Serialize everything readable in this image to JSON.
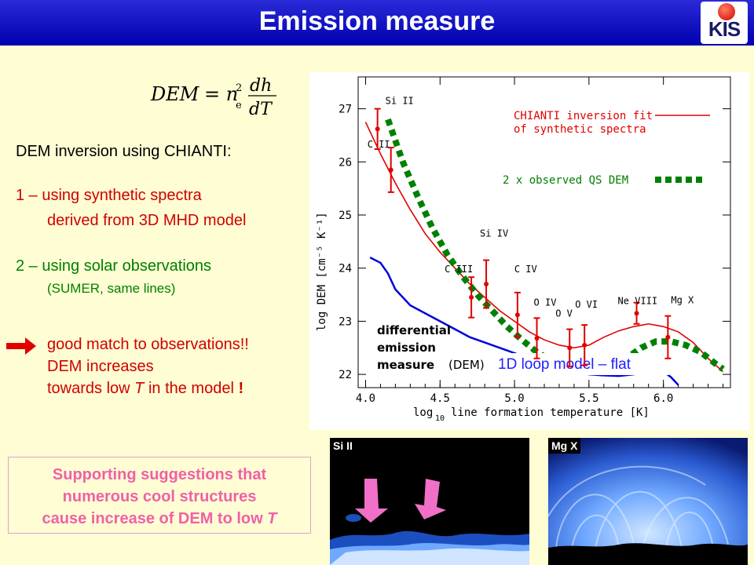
{
  "header": {
    "title": "Emission measure",
    "logo_text": "KIS"
  },
  "formula": {
    "lhs": "DEM",
    "eq": "= n",
    "sup": "2",
    "sub": "e",
    "num": "dh",
    "den": "dT"
  },
  "left": {
    "intro": "DEM inversion using CHIANTI:",
    "item1_line1": "1 – using synthetic spectra",
    "item1_line2": "derived from 3D MHD model",
    "item2_line1": "2 – using solar observations",
    "item2_line2": "(SUMER, same lines)",
    "conclusion_line1": "good match to observations!!",
    "conclusion_line2": "DEM increases",
    "conclusion_line3a": "towards low",
    "conclusion_line3b": "T",
    "conclusion_line3c": "in the model",
    "conclusion_line3d": "!"
  },
  "suggestion": {
    "line1": "Supporting suggestions that",
    "line2": "numerous cool structures",
    "line3a": "cause increase of DEM to low",
    "line3b": "T"
  },
  "images": {
    "left_label": "Si II",
    "right_label": "Mg X"
  },
  "chart_data": {
    "type": "line",
    "xlabel": "log10 line formation temperature [K]",
    "xlabel_main": "log",
    "xlabel_sub": "10",
    "xlabel_rest": "line formation temperature [K]",
    "ylabel": "log DEM [cm⁻⁵ K⁻¹]",
    "xlim": [
      3.95,
      6.45
    ],
    "ylim": [
      21.75,
      27.6
    ],
    "x_ticks": [
      "4.0",
      "4.5",
      "5.0",
      "5.5",
      "6.0"
    ],
    "x_tick_values": [
      4.0,
      4.5,
      5.0,
      5.5,
      6.0
    ],
    "y_ticks": [
      "22",
      "23",
      "24",
      "25",
      "26",
      "27"
    ],
    "y_tick_values": [
      22,
      23,
      24,
      25,
      26,
      27
    ],
    "legend": {
      "chianti": "CHIANTI inversion fit",
      "chianti2": "of synthetic spectra",
      "observed": "2 x observed QS DEM"
    },
    "annotations": {
      "dem1": "differential",
      "dem2": "emission",
      "dem3": "measure",
      "dem4": "(DEM)",
      "loop": "1D loop model – flat"
    },
    "series": [
      {
        "name": "CHIANTI inversion fit of synthetic spectra",
        "color": "#e00000",
        "x": [
          4.0,
          4.1,
          4.2,
          4.3,
          4.4,
          4.5,
          4.6,
          4.7,
          4.8,
          4.9,
          5.0,
          5.1,
          5.2,
          5.3,
          5.4,
          5.5,
          5.6,
          5.7,
          5.8,
          5.9,
          6.0,
          6.1,
          6.2,
          6.3,
          6.4
        ],
        "values": [
          26.75,
          26.15,
          25.6,
          25.1,
          24.65,
          24.3,
          24.0,
          23.7,
          23.45,
          23.2,
          23.0,
          22.8,
          22.65,
          22.55,
          22.5,
          22.55,
          22.7,
          22.82,
          22.9,
          22.95,
          22.9,
          22.8,
          22.6,
          22.3,
          22.05
        ]
      },
      {
        "name": "2 x observed QS DEM",
        "color": "#008000",
        "x": [
          4.15,
          4.25,
          4.35,
          4.45,
          4.55,
          4.65,
          4.75,
          4.85,
          4.95,
          5.05,
          5.15,
          5.25,
          5.35,
          5.45,
          5.55,
          5.65,
          5.75,
          5.85,
          5.95,
          6.05,
          6.15,
          6.25,
          6.35,
          6.4
        ],
        "values": [
          26.8,
          26.0,
          25.35,
          24.75,
          24.25,
          23.85,
          23.5,
          23.2,
          22.9,
          22.65,
          22.42,
          22.25,
          22.12,
          22.05,
          22.05,
          22.15,
          22.3,
          22.5,
          22.62,
          22.62,
          22.55,
          22.42,
          22.2,
          22.1
        ]
      },
      {
        "name": "differential emission measure (DEM)",
        "color": "#0000e0",
        "x": [
          4.03,
          4.1,
          4.15,
          4.2,
          4.3,
          4.4,
          4.5,
          4.6,
          4.7,
          4.8,
          4.9,
          5.0,
          5.1,
          5.2,
          5.3,
          5.4,
          5.5,
          5.6,
          5.7,
          5.8,
          5.9,
          6.0,
          6.05,
          6.1
        ],
        "values": [
          24.2,
          24.1,
          23.9,
          23.6,
          23.3,
          23.15,
          23.0,
          22.85,
          22.7,
          22.6,
          22.5,
          22.4,
          22.3,
          22.2,
          22.12,
          22.05,
          22.0,
          21.98,
          21.97,
          22.0,
          22.05,
          22.05,
          21.95,
          21.8
        ]
      }
    ],
    "observations": [
      {
        "label": "Si II",
        "x": 4.08,
        "y": 26.62,
        "err": 0.38
      },
      {
        "label": "C II",
        "x": 4.17,
        "y": 25.85,
        "err": 0.42
      },
      {
        "label": "C III",
        "x": 4.71,
        "y": 23.45,
        "err": 0.38
      },
      {
        "label": "Si IV",
        "x": 4.81,
        "y": 23.7,
        "err": 0.45
      },
      {
        "label": "C IV",
        "x": 5.02,
        "y": 23.12,
        "err": 0.42
      },
      {
        "label": "O IV",
        "x": 5.15,
        "y": 22.68,
        "err": 0.38
      },
      {
        "label": "O V",
        "x": 5.37,
        "y": 22.5,
        "err": 0.35
      },
      {
        "label": "O VI",
        "x": 5.47,
        "y": 22.55,
        "err": 0.38
      },
      {
        "label": "Ne VIII",
        "x": 5.82,
        "y": 23.15,
        "err": 0.2
      },
      {
        "label": "Mg X",
        "x": 6.03,
        "y": 22.7,
        "err": 0.4
      }
    ]
  }
}
